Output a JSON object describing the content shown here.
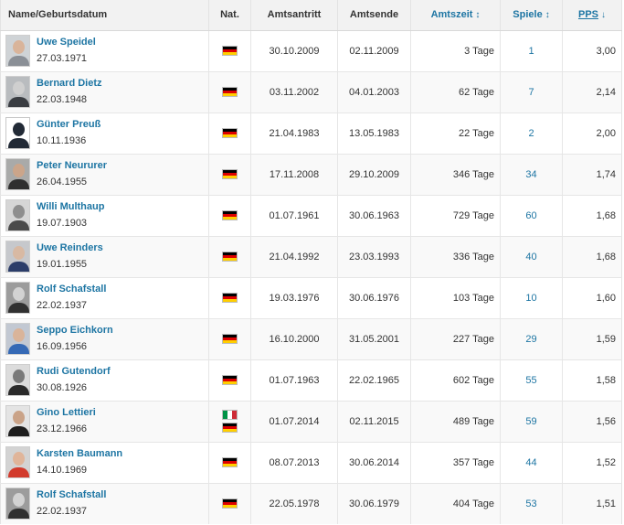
{
  "headers": {
    "name": "Name/Geburtsdatum",
    "nat": "Nat.",
    "start": "Amtsantritt",
    "end": "Amtsende",
    "tenure": "Amtszeit",
    "games": "Spiele",
    "pps": "PPS",
    "sort_both_icon": "↕",
    "sort_down_icon": "↓"
  },
  "colors": {
    "link": "#1d75a3",
    "header_bg": "#f2f2f2"
  },
  "rows": [
    {
      "name": "Uwe Speidel",
      "birth": "27.03.1971",
      "nations": [
        "de"
      ],
      "start": "30.10.2009",
      "end": "02.11.2009",
      "tenure": "3 Tage",
      "games": "1",
      "pps": "3,00",
      "photo": {
        "bg": "#cfd3d6",
        "skin": "#d9b49a",
        "shirt": "#8a8f96"
      }
    },
    {
      "name": "Bernard Dietz",
      "birth": "22.03.1948",
      "nations": [
        "de"
      ],
      "start": "03.11.2002",
      "end": "04.01.2003",
      "tenure": "62 Tage",
      "games": "7",
      "pps": "2,14",
      "photo": {
        "bg": "#b9bcbf",
        "skin": "#cfcfcf",
        "shirt": "#3a3d42"
      }
    },
    {
      "name": "Günter Preuß",
      "birth": "10.11.1936",
      "nations": [
        "de"
      ],
      "start": "21.04.1983",
      "end": "13.05.1983",
      "tenure": "22 Tage",
      "games": "2",
      "pps": "2,00",
      "photo": {
        "silhouette": true
      }
    },
    {
      "name": "Peter Neururer",
      "birth": "26.04.1955",
      "nations": [
        "de"
      ],
      "start": "17.11.2008",
      "end": "29.10.2009",
      "tenure": "346 Tage",
      "games": "34",
      "pps": "1,74",
      "photo": {
        "bg": "#a9aaa9",
        "skin": "#cba58a",
        "shirt": "#2f2f2f"
      }
    },
    {
      "name": "Willi Multhaup",
      "birth": "19.07.1903",
      "nations": [
        "de"
      ],
      "start": "01.07.1961",
      "end": "30.06.1963",
      "tenure": "729 Tage",
      "games": "60",
      "pps": "1,68",
      "photo": {
        "bg": "#d6d6d6",
        "skin": "#8e8e8e",
        "shirt": "#4a4a4a"
      }
    },
    {
      "name": "Uwe Reinders",
      "birth": "19.01.1955",
      "nations": [
        "de"
      ],
      "start": "21.04.1992",
      "end": "23.03.1993",
      "tenure": "336 Tage",
      "games": "40",
      "pps": "1,68",
      "photo": {
        "bg": "#c6c8cc",
        "skin": "#d8b9a3",
        "shirt": "#2b3d69"
      }
    },
    {
      "name": "Rolf Schafstall",
      "birth": "22.02.1937",
      "nations": [
        "de"
      ],
      "start": "19.03.1976",
      "end": "30.06.1976",
      "tenure": "103 Tage",
      "games": "10",
      "pps": "1,60",
      "photo": {
        "bg": "#9c9c9c",
        "skin": "#d2d2d2",
        "shirt": "#303030"
      }
    },
    {
      "name": "Seppo Eichkorn",
      "birth": "16.09.1956",
      "nations": [
        "de"
      ],
      "start": "16.10.2000",
      "end": "31.05.2001",
      "tenure": "227 Tage",
      "games": "29",
      "pps": "1,59",
      "photo": {
        "bg": "#c2c8d2",
        "skin": "#d9b49a",
        "shirt": "#3569b5"
      }
    },
    {
      "name": "Rudi Gutendorf",
      "birth": "30.08.1926",
      "nations": [
        "de"
      ],
      "start": "01.07.1963",
      "end": "22.02.1965",
      "tenure": "602 Tage",
      "games": "55",
      "pps": "1,58",
      "photo": {
        "bg": "#dcdcdc",
        "skin": "#7a7a7a",
        "shirt": "#2a2a2a"
      }
    },
    {
      "name": "Gino Lettieri",
      "birth": "23.12.1966",
      "nations": [
        "it",
        "de"
      ],
      "start": "01.07.2014",
      "end": "02.11.2015",
      "tenure": "489 Tage",
      "games": "59",
      "pps": "1,56",
      "photo": {
        "bg": "#e4e4e4",
        "skin": "#caa388",
        "shirt": "#1e1e1e"
      }
    },
    {
      "name": "Karsten Baumann",
      "birth": "14.10.1969",
      "nations": [
        "de"
      ],
      "start": "08.07.2013",
      "end": "30.06.2014",
      "tenure": "357 Tage",
      "games": "44",
      "pps": "1,52",
      "photo": {
        "bg": "#d3d3d3",
        "skin": "#e0b59a",
        "shirt": "#d23a2c"
      }
    },
    {
      "name": "Rolf Schafstall",
      "birth": "22.02.1937",
      "nations": [
        "de"
      ],
      "start": "22.05.1978",
      "end": "30.06.1979",
      "tenure": "404 Tage",
      "games": "53",
      "pps": "1,51",
      "photo": {
        "bg": "#9c9c9c",
        "skin": "#d2d2d2",
        "shirt": "#303030"
      }
    }
  ]
}
